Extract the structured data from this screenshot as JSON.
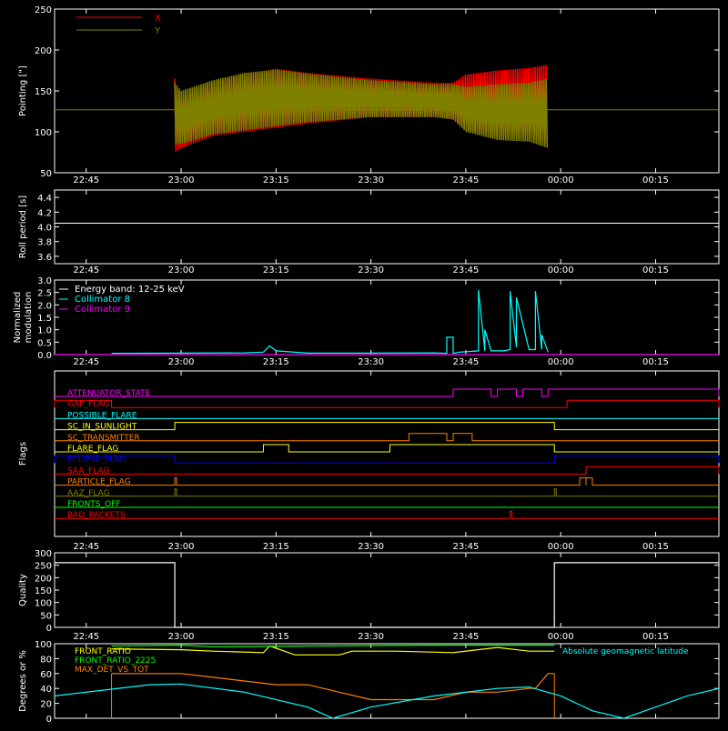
{
  "colors": {
    "background": "#000000",
    "axes": "#ffffff",
    "x": "#ff0000",
    "y": "#808000",
    "cyan": "#00ffff",
    "magenta": "#ff00ff",
    "red": "#ff0000",
    "yellow": "#ffff00",
    "orange": "#ff8000",
    "blue": "#0000ff",
    "green": "#00ff00",
    "olive": "#808000",
    "white": "#ffffff"
  },
  "time_axis": {
    "start": "22:40",
    "end": "00:25",
    "tick_labels": [
      "22:45",
      "23:00",
      "23:15",
      "23:30",
      "23:45",
      "00:00",
      "00:15"
    ],
    "tick_offsets_min": [
      5,
      20,
      35,
      50,
      65,
      80,
      95
    ]
  },
  "chart_data": [
    {
      "id": "pointing",
      "type": "line",
      "ylabel": "Pointing [\"]",
      "ylim": [
        50,
        250
      ],
      "yticks": [
        50,
        100,
        150,
        200,
        250
      ],
      "legend": [
        "X",
        "Y"
      ],
      "legend_placement": "top-left",
      "series": [
        {
          "name": "X",
          "color": "#ff0000",
          "env_t": [
            "22:59",
            "23:00",
            "23:05",
            "23:10",
            "23:15",
            "23:20",
            "23:30",
            "23:40",
            "23:43",
            "23:45",
            "23:50",
            "23:55",
            "23:58"
          ],
          "hi": [
            165,
            142,
            160,
            170,
            177,
            172,
            165,
            160,
            160,
            170,
            175,
            178,
            182
          ],
          "lo": [
            75,
            80,
            95,
            100,
            105,
            110,
            118,
            118,
            115,
            102,
            95,
            95,
            85
          ]
        },
        {
          "name": "Y",
          "color": "#808000",
          "env_t": [
            "22:59",
            "23:00",
            "23:05",
            "23:10",
            "23:15",
            "23:20",
            "23:30",
            "23:40",
            "23:43",
            "23:45",
            "23:50",
            "23:55",
            "23:58"
          ],
          "hi": [
            160,
            150,
            163,
            172,
            176,
            171,
            163,
            158,
            158,
            155,
            158,
            160,
            165
          ],
          "lo": [
            85,
            85,
            97,
            102,
            107,
            112,
            118,
            118,
            115,
            100,
            90,
            88,
            80
          ]
        },
        {
          "name": "",
          "color": "#808000",
          "const": 127
        }
      ]
    },
    {
      "id": "roll",
      "type": "line",
      "ylabel": "Roll period [s]",
      "ylim": [
        3.5,
        4.5
      ],
      "yticks": [
        3.6,
        3.8,
        4.0,
        4.2,
        4.4
      ],
      "series": [
        {
          "name": "",
          "color": "#ffffff",
          "const": 4.05
        }
      ]
    },
    {
      "id": "modulation",
      "type": "line",
      "ylabel": "Normalized modulation",
      "ylim": [
        0,
        3.0
      ],
      "yticks": [
        0.0,
        0.5,
        1.0,
        1.5,
        2.0,
        2.5,
        3.0
      ],
      "legend": [
        "Energy band: 12-25 keV",
        "Collimator 8",
        "Collimator 9"
      ],
      "legend_placement": "top-left",
      "series": [
        {
          "name": "Collimator 8",
          "color": "#00ffff",
          "t": [
            "22:49",
            "23:00",
            "23:10",
            "23:13",
            "23:14",
            "23:15",
            "23:20",
            "23:30",
            "23:40",
            "23:42",
            "23:42",
            "23:43",
            "23:43",
            "23:44",
            "23:47",
            "23:47",
            "23:48",
            "23:48",
            "23:49",
            "23:51",
            "23:52",
            "23:52",
            "23:53",
            "23:53",
            "23:55",
            "23:56",
            "23:56",
            "23:57",
            "23:57",
            "23:58"
          ],
          "y": [
            0.05,
            0.06,
            0.07,
            0.1,
            0.35,
            0.15,
            0.06,
            0.06,
            0.07,
            0.05,
            0.7,
            0.7,
            0.05,
            0.1,
            0.15,
            2.6,
            0.15,
            1.0,
            0.15,
            0.15,
            0.2,
            2.55,
            0.3,
            2.3,
            0.2,
            0.2,
            2.55,
            0.2,
            0.8,
            0.1
          ]
        },
        {
          "name": "Collimator 9",
          "color": "#ff00ff",
          "t": [
            "22:40",
            "00:25"
          ],
          "y": [
            0.0,
            0.0
          ]
        }
      ]
    },
    {
      "id": "flags",
      "type": "line",
      "ylabel": "Flags",
      "flags": [
        {
          "name": "ATTENUATOR_STATE",
          "color": "#ff00ff",
          "high": [
            [
              "23:43",
              "23:49"
            ],
            [
              "23:50",
              "23:53"
            ],
            [
              "23:54",
              "23:57"
            ],
            [
              "23:58",
              "00:25"
            ]
          ]
        },
        {
          "name": "GAP_FLAG",
          "color": "#ff0000",
          "high": [
            [
              "22:40",
              "22:49"
            ],
            [
              "00:01",
              "00:25"
            ]
          ]
        },
        {
          "name": "POSSIBLE_FLARE",
          "color": "#00ffff",
          "high": []
        },
        {
          "name": "SC_IN_SUNLIGHT",
          "color": "#ffff00",
          "high": [
            [
              "22:59",
              "23:59"
            ]
          ]
        },
        {
          "name": "SC_TRANSMITTER",
          "color": "#ff8000",
          "high": [
            [
              "23:36",
              "23:42"
            ],
            [
              "23:43",
              "23:46"
            ]
          ]
        },
        {
          "name": "FLARE_FLAG",
          "color": "#ffff00",
          "high": [
            [
              "23:13",
              "23:17"
            ],
            [
              "23:33",
              "23:59"
            ]
          ]
        },
        {
          "name": "ECLIPSE_FLAG",
          "color": "#0000ff",
          "high": [
            [
              "22:40",
              "22:59"
            ],
            [
              "23:59",
              "00:25"
            ]
          ]
        },
        {
          "name": "SAA_FLAG",
          "color": "#ff0000",
          "high": [
            [
              "00:04",
              "00:25"
            ]
          ]
        },
        {
          "name": "PARTICLE_FLAG",
          "color": "#ff8000",
          "high": [
            [
              "22:59",
              "22:59"
            ],
            [
              "00:03",
              "00:04"
            ],
            [
              "00:04",
              "00:05"
            ]
          ]
        },
        {
          "name": "AAZ_FLAG",
          "color": "#808000",
          "high": [
            [
              "22:59",
              "22:59"
            ],
            [
              "23:59",
              "23:59"
            ]
          ]
        },
        {
          "name": "FRONTS_OFF",
          "color": "#00ff00",
          "high": []
        },
        {
          "name": "BAD_PACKETS",
          "color": "#ff0000",
          "high": [
            [
              "23:52",
              "23:52"
            ]
          ]
        }
      ]
    },
    {
      "id": "quality",
      "type": "line",
      "ylabel": "Quality",
      "ylim": [
        0,
        300
      ],
      "yticks": [
        0,
        50,
        100,
        150,
        200,
        250,
        300
      ],
      "series": [
        {
          "name": "",
          "color": "#ffffff",
          "t": [
            "22:40",
            "22:59",
            "22:59",
            "23:59",
            "23:59",
            "00:25"
          ],
          "y": [
            260,
            260,
            0,
            0,
            260,
            260
          ]
        }
      ]
    },
    {
      "id": "ratios",
      "type": "line",
      "ylabel": "Degrees or %",
      "ylim": [
        0,
        100
      ],
      "yticks": [
        0,
        20,
        40,
        60,
        80,
        100
      ],
      "legend": [
        "FRONT_RATIO",
        "FRONT_RATIO_2225",
        "MAX_DET_VS_TOT",
        "Absolute geomagnetic latitude"
      ],
      "legend_placement": "top",
      "series": [
        {
          "name": "FRONT_RATIO",
          "color": "#ffff00",
          "t": [
            "22:49",
            "23:00",
            "23:05",
            "23:13",
            "23:14",
            "23:18",
            "23:25",
            "23:27",
            "23:34",
            "23:43",
            "23:50",
            "23:55",
            "23:59"
          ],
          "y": [
            93,
            92,
            90,
            88,
            97,
            85,
            85,
            90,
            90,
            88,
            95,
            90,
            90
          ]
        },
        {
          "name": "FRONT_RATIO_2225",
          "color": "#00ff00",
          "t": [
            "22:49",
            "23:00",
            "23:05",
            "23:20",
            "23:40",
            "23:59"
          ],
          "y": [
            97,
            98,
            96,
            97,
            98,
            98
          ]
        },
        {
          "name": "MAX_DET_VS_TOT",
          "color": "#ff8000",
          "t": [
            "22:49",
            "23:00",
            "23:05",
            "23:10",
            "23:15",
            "23:20",
            "23:25",
            "23:30",
            "23:35",
            "23:40",
            "23:45",
            "23:50",
            "23:55",
            "23:56",
            "23:58",
            "23:59"
          ],
          "y": [
            60,
            60,
            55,
            50,
            45,
            45,
            35,
            25,
            25,
            25,
            35,
            35,
            40,
            40,
            60,
            60
          ]
        },
        {
          "name": "Absolute geomagnetic latitude",
          "color": "#00ffff",
          "t": [
            "22:40",
            "22:55",
            "23:00",
            "23:10",
            "23:20",
            "23:24",
            "23:30",
            "23:40",
            "23:50",
            "23:55",
            "00:00",
            "00:05",
            "00:10",
            "00:15",
            "00:20",
            "00:25"
          ],
          "y": [
            30,
            45,
            46,
            35,
            15,
            0,
            15,
            30,
            40,
            42,
            30,
            10,
            0,
            15,
            30,
            40
          ]
        }
      ]
    }
  ]
}
